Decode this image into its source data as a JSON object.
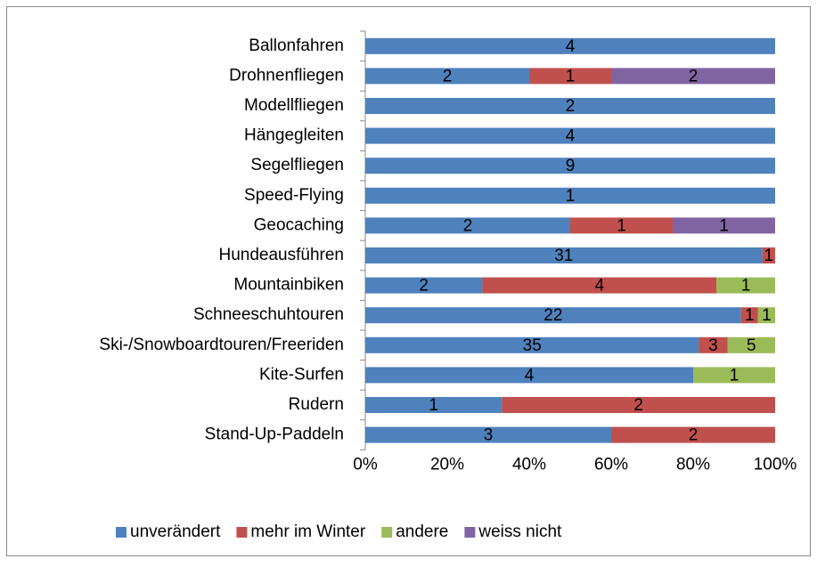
{
  "chart_data": {
    "type": "bar",
    "orientation": "horizontal",
    "stacked": "percent",
    "categories": [
      "Ballonfahren",
      "Drohnenfliegen",
      "Modellfliegen",
      "Hängegleiten",
      "Segelfliegen",
      "Speed-Flying",
      "Geocaching",
      "Hundeausführen",
      "Mountainbiken",
      "Schneeschuhtouren",
      "Ski-/Snowboardtouren/Freeriden",
      "Kite-Surfen",
      "Rudern",
      "Stand-Up-Paddeln"
    ],
    "series": [
      {
        "name": "unverändert",
        "color": "#4f81bd",
        "values": [
          4,
          2,
          2,
          4,
          9,
          1,
          2,
          31,
          2,
          22,
          35,
          4,
          1,
          3
        ]
      },
      {
        "name": "mehr im Winter",
        "color": "#c0504d",
        "values": [
          null,
          1,
          null,
          null,
          null,
          null,
          1,
          1,
          4,
          1,
          3,
          null,
          2,
          2
        ]
      },
      {
        "name": "andere",
        "color": "#9bbb59",
        "values": [
          null,
          null,
          null,
          null,
          null,
          null,
          null,
          null,
          1,
          1,
          5,
          1,
          null,
          null
        ]
      },
      {
        "name": "weiss nicht",
        "color": "#8064a2",
        "values": [
          null,
          2,
          null,
          null,
          null,
          null,
          1,
          null,
          null,
          null,
          null,
          null,
          null,
          null
        ]
      }
    ],
    "xlim": [
      0,
      100
    ],
    "xticks": [
      {
        "value": 0,
        "label": "0%"
      },
      {
        "value": 20,
        "label": "20%"
      },
      {
        "value": 40,
        "label": "40%"
      },
      {
        "value": 60,
        "label": "60%"
      },
      {
        "value": 80,
        "label": "80%"
      },
      {
        "value": 100,
        "label": "100%"
      }
    ],
    "legend": "bottom"
  }
}
